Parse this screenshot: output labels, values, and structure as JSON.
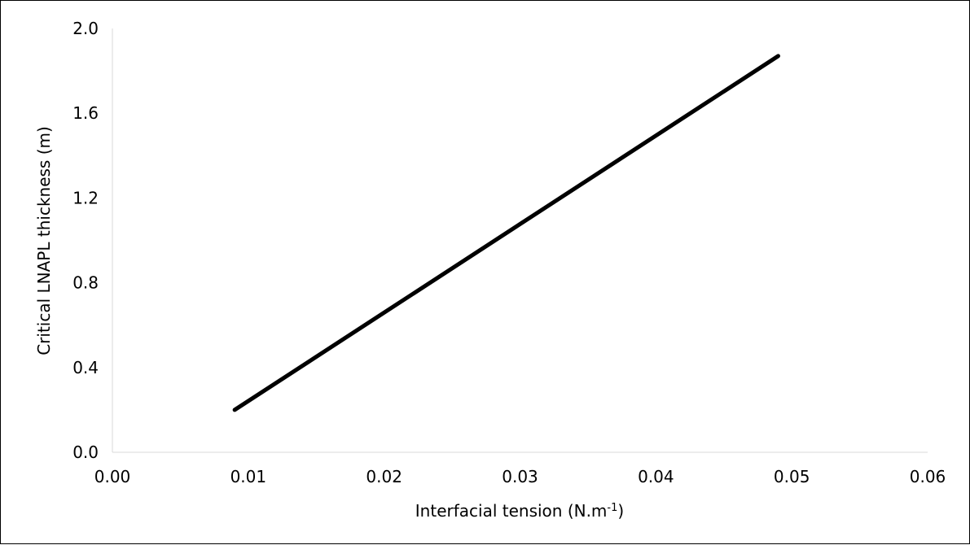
{
  "chart_data": {
    "type": "line",
    "title": "",
    "xlabel": "Interfacial tension (N.m",
    "xlabel_superscript": "-1",
    "xlabel_suffix": ")",
    "ylabel": "Critical LNAPL thickness (m)",
    "xlim": [
      0,
      0.06
    ],
    "ylim": [
      0,
      2.0
    ],
    "x_ticks": [
      "0.00",
      "0.01",
      "0.02",
      "0.03",
      "0.04",
      "0.05",
      "0.06"
    ],
    "y_ticks": [
      "0.0",
      "0.4",
      "0.8",
      "1.2",
      "1.6",
      "2.0"
    ],
    "grid": false,
    "legend": "none",
    "series": [
      {
        "color": "#000000",
        "x": [
          0.009,
          0.049
        ],
        "y": [
          0.2,
          1.87
        ]
      }
    ]
  }
}
